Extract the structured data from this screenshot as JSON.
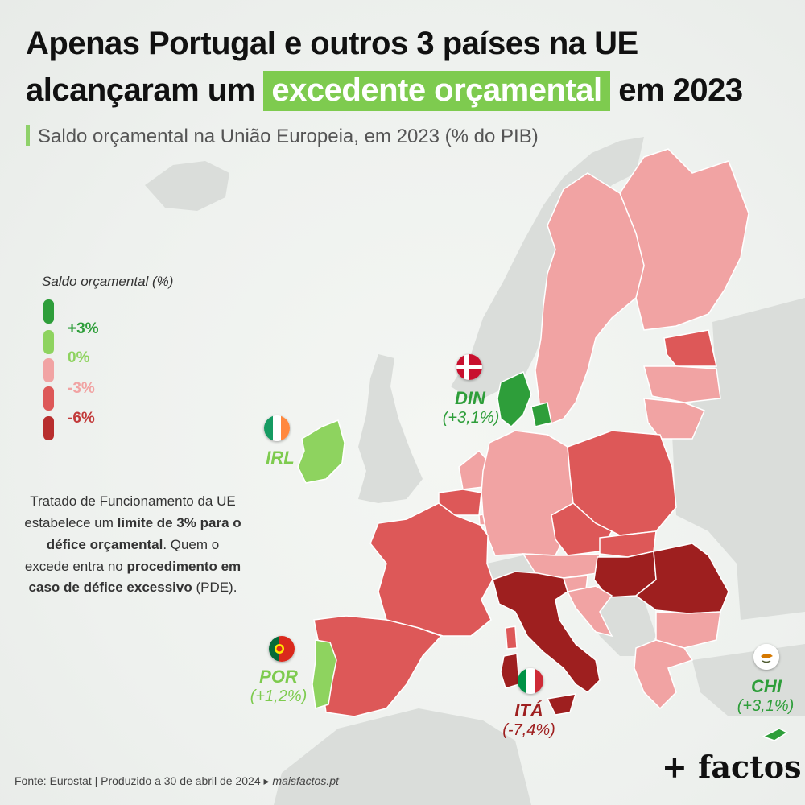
{
  "title": {
    "line1": "Apenas Portugal e outros 3 países na UE",
    "line2_pre": "alcançaram um",
    "line2_highlight": "excedente orçamental",
    "line2_post": "em 2023"
  },
  "subtitle": "Saldo orçamental na União Europeia, em 2023 (% do PIB)",
  "legend": {
    "title": "Saldo orçamental (%)",
    "items": [
      {
        "label": "+3%",
        "color": "#2e9e3a"
      },
      {
        "label": "0%",
        "color": "#8ed35f"
      },
      {
        "label": "-3%",
        "color": "#f1a3a3"
      },
      {
        "label": "-6%",
        "color": "#b82e2e"
      }
    ],
    "top_swatch_color": "#2e9e3a",
    "mid_swatch_color": "#dd5858"
  },
  "note": {
    "p1": "Tratado de Funcionamento da UE estabelece um ",
    "b1": "limite de 3% para o défice orçamental",
    "p2": ". Quem o excede entra no ",
    "b2": "procedimento em caso de défice excessivo",
    "p3": " (PDE)."
  },
  "callouts": [
    {
      "id": "din",
      "name": "DIN",
      "value": "(+3,1%)",
      "color": "#2e9e3a",
      "flag": "denmark-flag"
    },
    {
      "id": "irl",
      "name": "IRL",
      "value": "",
      "color": "#7ecb4f",
      "flag": "ireland-flag"
    },
    {
      "id": "por",
      "name": "POR",
      "value": "(+1,2%)",
      "color": "#7ecb4f",
      "flag": "portugal-flag"
    },
    {
      "id": "ita",
      "name": "ITÁ",
      "value": "(-7,4%)",
      "color": "#9e1f1f",
      "flag": "italy-flag"
    },
    {
      "id": "chi",
      "name": "CHI",
      "value": "(+3,1%)",
      "color": "#2e9e3a",
      "flag": "cyprus-flag"
    }
  ],
  "colors": {
    "deficit_high": "#9e1f1f",
    "deficit_mid": "#dd5858",
    "deficit_low": "#f1a3a3",
    "surplus_low": "#8ed35f",
    "surplus_high": "#2e9e3a",
    "non_eu": "#d9dcd9"
  },
  "footer": {
    "source": "Fonte: Eurostat | Produzido a 30 de abril de 2024 ▸",
    "site": "maisfactos.pt",
    "brand": "+ factos"
  }
}
